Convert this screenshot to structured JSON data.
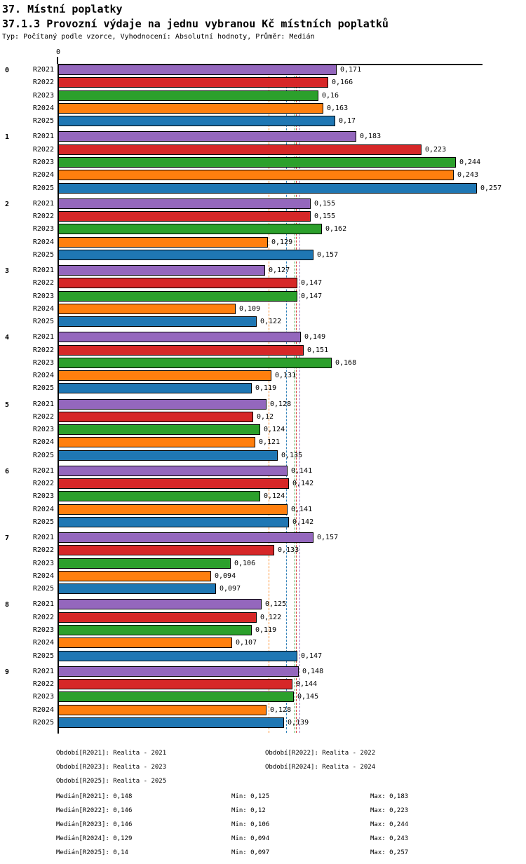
{
  "header": {
    "title": "37. Místní poplatky",
    "subtitle": "37.1.3 Provozní výdaje na jednu vybranou Kč místních poplatků",
    "meta": "Typ: Počítaný podle vzorce, Vyhodnocení: Absolutní hodnoty, Průměr: Medián"
  },
  "chart_data": {
    "type": "bar",
    "orientation": "horizontal",
    "title": "37.1.3 Provozní výdaje na jednu vybranou Kč místních poplatků",
    "categories": [
      "0",
      "1",
      "2",
      "3",
      "4",
      "5",
      "6",
      "7",
      "8",
      "9"
    ],
    "axis": {
      "origin_label": "0",
      "xmin": 0,
      "xmax": 0.26,
      "value_format": "decimal-comma"
    },
    "grid": false,
    "legend_position": "bottom",
    "series": [
      {
        "name": "R2021",
        "color": "#9467bd",
        "period": "Realita - 2021",
        "median": 0.148,
        "min": 0.125,
        "max": 0.183,
        "values": [
          0.171,
          0.183,
          0.155,
          0.127,
          0.149,
          0.128,
          0.141,
          0.157,
          0.125,
          0.148
        ]
      },
      {
        "name": "R2022",
        "color": "#d62728",
        "period": "Realita - 2022",
        "median": 0.146,
        "min": 0.12,
        "max": 0.223,
        "values": [
          0.166,
          0.223,
          0.155,
          0.147,
          0.151,
          0.12,
          0.142,
          0.133,
          0.122,
          0.144
        ]
      },
      {
        "name": "R2023",
        "color": "#2ca02c",
        "period": "Realita - 2023",
        "median": 0.146,
        "min": 0.106,
        "max": 0.244,
        "values": [
          0.16,
          0.244,
          0.162,
          0.147,
          0.168,
          0.124,
          0.124,
          0.106,
          0.119,
          0.145
        ]
      },
      {
        "name": "R2024",
        "color": "#ff7f0e",
        "period": "Realita - 2024",
        "median": 0.129,
        "min": 0.094,
        "max": 0.243,
        "values": [
          0.163,
          0.243,
          0.129,
          0.109,
          0.131,
          0.121,
          0.141,
          0.094,
          0.107,
          0.128
        ]
      },
      {
        "name": "R2025",
        "color": "#1f77b4",
        "period": "Realita - 2025",
        "median": 0.14,
        "min": 0.097,
        "max": 0.257,
        "values": [
          0.17,
          0.257,
          0.157,
          0.122,
          0.119,
          0.135,
          0.142,
          0.097,
          0.147,
          0.139
        ]
      }
    ]
  },
  "legend": {
    "periods": [
      {
        "text": "Období[R2021]: Realita - 2021",
        "col": 0,
        "row": 0
      },
      {
        "text": "Období[R2022]: Realita - 2022",
        "col": 1,
        "row": 0
      },
      {
        "text": "Období[R2023]: Realita - 2023",
        "col": 0,
        "row": 1
      },
      {
        "text": "Období[R2024]: Realita - 2024",
        "col": 1,
        "row": 1
      },
      {
        "text": "Období[R2025]: Realita - 2025",
        "col": 0,
        "row": 2
      }
    ],
    "stats": [
      {
        "median": "Medián[R2021]: 0,148",
        "min": "Min: 0,125",
        "max": "Max: 0,183"
      },
      {
        "median": "Medián[R2022]: 0,146",
        "min": "Min: 0,12",
        "max": "Max: 0,223"
      },
      {
        "median": "Medián[R2023]: 0,146",
        "min": "Min: 0,106",
        "max": "Max: 0,244"
      },
      {
        "median": "Medián[R2024]: 0,129",
        "min": "Min: 0,094",
        "max": "Max: 0,243"
      },
      {
        "median": "Medián[R2025]: 0,14",
        "min": "Min: 0,097",
        "max": "Max: 0,257"
      }
    ]
  }
}
